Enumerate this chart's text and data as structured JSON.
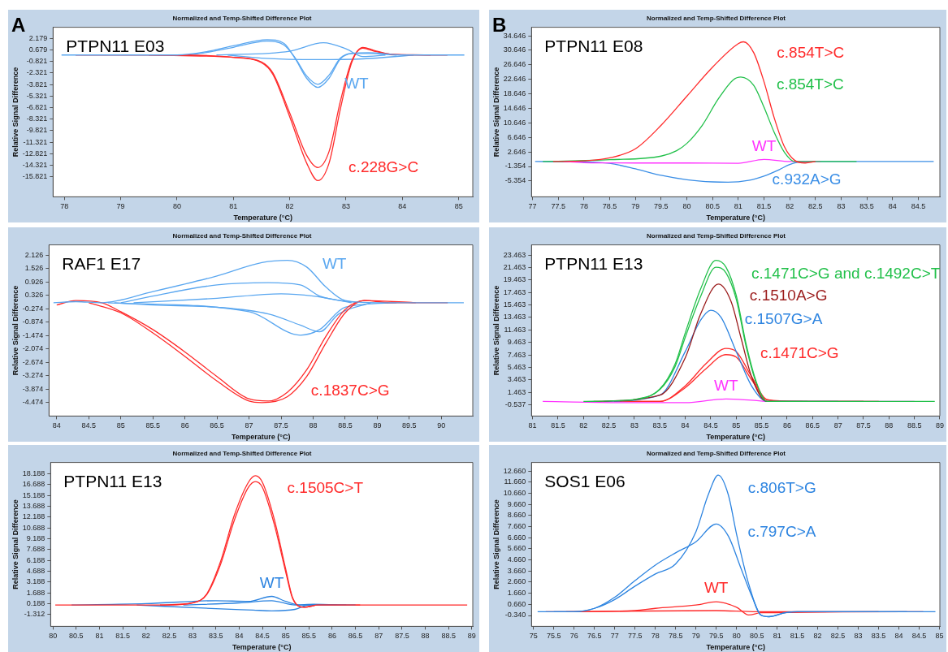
{
  "chart_data": [
    {
      "type": "line",
      "title": "Normalized and Temp-Shifted Difference Plot",
      "xlabel": "Temperature (°C)",
      "ylabel": "Relative Signal Difference",
      "marker": "none",
      "xlim": [
        77.8,
        85.25
      ],
      "xticks": [
        78,
        79,
        80,
        81,
        82,
        83,
        84,
        85
      ],
      "ylim": [
        -18.4,
        3.6
      ],
      "yticks": [
        2.179,
        0.679,
        -0.821,
        -2.321,
        -3.821,
        -5.321,
        -6.821,
        -8.321,
        -9.821,
        -11.321,
        -12.821,
        -14.321,
        -15.821
      ],
      "annotations": [
        "A",
        "PTPN11 E03",
        "WT",
        "c.228G>C"
      ],
      "series": [
        {
          "color": "#5aa7f0",
          "x": [
            77.95,
            80,
            80.5,
            81,
            81.6,
            81.9,
            82.1,
            82.3,
            82.5,
            82.7,
            82.9,
            83.1,
            83.4,
            84,
            85.1
          ],
          "values": [
            0,
            0,
            0.4,
            1.2,
            2,
            1.5,
            -0.5,
            -3,
            -4.2,
            -3,
            -0.5,
            0.2,
            0.3,
            0,
            0
          ]
        },
        {
          "color": "#ff2a2a",
          "x": [
            78.2,
            80,
            81,
            81.5,
            81.7,
            82,
            82.3,
            82.5,
            82.7,
            82.9,
            83.1,
            83.3,
            83.5,
            83.8,
            84.8
          ],
          "values": [
            0,
            0,
            -0.3,
            -1,
            -2.5,
            -8,
            -14,
            -16.3,
            -14,
            -7,
            -1,
            1,
            0.6,
            0.1,
            0
          ]
        },
        {
          "color": "#ff2a2a",
          "x": [
            79.5,
            81,
            81.5,
            81.7,
            82,
            82.3,
            82.5,
            82.7,
            82.9,
            83.1,
            83.3,
            83.5,
            83.8,
            84.5
          ],
          "values": [
            0,
            -0.3,
            -0.9,
            -2.3,
            -7.5,
            -13,
            -14.6,
            -12.5,
            -6,
            -0.8,
            0.9,
            0.5,
            0.1,
            0
          ]
        },
        {
          "color": "#5aa7f0",
          "x": [
            80.2,
            80.5,
            81,
            81.6,
            81.9,
            82.1,
            82.3,
            82.5,
            82.7,
            82.9,
            83.1,
            83.4,
            83.9
          ],
          "values": [
            0,
            0.3,
            1,
            1.8,
            1.3,
            -0.4,
            -2.7,
            -3.8,
            -2.6,
            -0.4,
            0.2,
            0.2,
            0
          ]
        },
        {
          "color": "#5aa7f0",
          "x": [
            80.7,
            82,
            82.6,
            83,
            83.3,
            83.7
          ],
          "values": [
            0,
            0.5,
            1.6,
            0.8,
            -0.2,
            0
          ]
        },
        {
          "color": "#5aa7f0",
          "x": [
            80.9,
            81.5,
            82.5,
            83.3,
            84.2
          ],
          "values": [
            0,
            -0.4,
            -0.6,
            -0.5,
            0
          ]
        }
      ]
    },
    {
      "type": "line",
      "title": "Normalized and Temp-Shifted Difference Plot",
      "xlabel": "Temperature (°C)",
      "ylabel": "Relative Signal Difference",
      "marker": "none",
      "xlim": [
        83.88,
        90.49
      ],
      "xticks": [
        84,
        84.5,
        85,
        85.5,
        86,
        86.5,
        87,
        87.5,
        88,
        88.5,
        89,
        89.5,
        90
      ],
      "ylim": [
        -5.07,
        2.59
      ],
      "yticks": [
        2.126,
        1.526,
        0.926,
        0.326,
        -0.274,
        -0.874,
        -1.474,
        -2.074,
        -2.674,
        -3.274,
        -3.874,
        -4.474
      ],
      "annotations": [
        "RAF1 E17",
        "WT",
        "c.1837C>G"
      ],
      "series": [
        {
          "color": "#5aa7f0",
          "x": [
            83.95,
            84.3,
            84.7,
            85.5,
            86.5,
            87.2,
            87.6,
            87.9,
            88.2,
            88.5,
            89,
            90.35
          ],
          "values": [
            0,
            0.05,
            0,
            0.5,
            1.2,
            1.8,
            1.9,
            1.6,
            0.7,
            0.1,
            0,
            0
          ]
        },
        {
          "color": "#ff2a2a",
          "x": [
            84,
            84.3,
            84.7,
            85,
            85.5,
            86,
            86.5,
            87,
            87.3,
            87.6,
            87.9,
            88.2,
            88.5,
            88.8,
            89.2,
            90.1
          ],
          "values": [
            -0.1,
            0.1,
            0,
            -0.4,
            -1.2,
            -2.2,
            -3.3,
            -4.3,
            -4.4,
            -4,
            -3,
            -1.5,
            -0.3,
            0.1,
            0,
            0
          ]
        },
        {
          "color": "#ff2a2a",
          "x": [
            84.5,
            85,
            85.5,
            86,
            86.5,
            87,
            87.2,
            87.6,
            87.9,
            88.2,
            88.5,
            88.8,
            89.6
          ],
          "values": [
            0,
            -0.45,
            -1.35,
            -2.4,
            -3.5,
            -4.4,
            -4.47,
            -4.2,
            -3.3,
            -1.8,
            -0.45,
            0.1,
            0
          ]
        },
        {
          "color": "#5aa7f0",
          "x": [
            84.8,
            87,
            87.8,
            88.1,
            88.5,
            89.3
          ],
          "values": [
            0,
            -0.4,
            -1.45,
            -1.2,
            -0.2,
            0
          ]
        },
        {
          "color": "#5aa7f0",
          "x": [
            85,
            85.5,
            86.5,
            87.3,
            87.8,
            88.1,
            88.7
          ],
          "values": [
            0,
            0.3,
            0.8,
            0.9,
            0.8,
            0.3,
            0
          ]
        },
        {
          "color": "#5aa7f0",
          "x": [
            84.9,
            85.5,
            86.5,
            87.3,
            87.8,
            88.1,
            88.4,
            88.9
          ],
          "values": [
            0,
            -0.1,
            -0.2,
            -0.5,
            -1,
            -1.3,
            -0.5,
            0
          ]
        },
        {
          "color": "#5aa7f0",
          "x": [
            85.2,
            86.5,
            87.5,
            88,
            88.6
          ],
          "values": [
            0,
            0.2,
            0.4,
            0.3,
            0
          ]
        }
      ]
    },
    {
      "type": "line",
      "title": "Normalized and Temp-Shifted Difference Plot",
      "xlabel": "Temperature (°C)",
      "ylabel": "Relative Signal Difference",
      "marker": "none",
      "xlim": [
        79.95,
        89.02
      ],
      "xticks": [
        80,
        80.5,
        81,
        81.5,
        82,
        82.5,
        83,
        83.5,
        84,
        84.5,
        85,
        85.5,
        86,
        86.5,
        87,
        87.5,
        88,
        88.5,
        89
      ],
      "ylim": [
        -2.95,
        19.74
      ],
      "yticks": [
        18.188,
        16.688,
        15.188,
        13.688,
        12.188,
        10.688,
        9.188,
        7.688,
        6.188,
        4.688,
        3.188,
        1.688,
        0.188,
        -1.312
      ],
      "annotations": [
        "PTPN11 E13",
        "c.1505C>T",
        "WT"
      ],
      "series": [
        {
          "color": "#ff2a2a",
          "x": [
            80.05,
            82.5,
            83,
            83.3,
            83.6,
            83.9,
            84.2,
            84.35,
            84.5,
            84.75,
            85,
            85.15,
            85.4,
            85.7,
            88.9
          ],
          "values": [
            0,
            0,
            0.3,
            1.5,
            6,
            12.5,
            17,
            17.9,
            17,
            12,
            5,
            1,
            -0.3,
            0,
            0
          ]
        },
        {
          "color": "#2d84e0",
          "x": [
            80.4,
            82,
            83.5,
            84.2,
            84.7,
            85,
            85.3,
            86.5
          ],
          "values": [
            0,
            0.2,
            0.6,
            0.5,
            1.2,
            0.5,
            0,
            0
          ]
        },
        {
          "color": "#ff2a2a",
          "x": [
            82.3,
            83,
            83.3,
            83.6,
            83.9,
            84.2,
            84.35,
            84.5,
            84.75,
            85,
            85.15,
            85.4,
            85.7,
            86.6
          ],
          "values": [
            0,
            0.3,
            1.4,
            5.6,
            11.8,
            16.3,
            17.1,
            16.3,
            11.3,
            4.6,
            0.9,
            -0.3,
            0,
            0
          ]
        },
        {
          "color": "#2d84e0",
          "x": [
            81.8,
            83.5,
            84.3,
            84.7,
            85.2,
            85.5,
            86.1
          ],
          "values": [
            0,
            -0.5,
            -0.7,
            -0.8,
            -0.6,
            0,
            0
          ]
        },
        {
          "color": "#2d84e0",
          "x": [
            82.8,
            84,
            84.7,
            85.2,
            85.6,
            86.3
          ],
          "values": [
            0,
            0.3,
            0.6,
            0,
            0.1,
            0
          ]
        }
      ]
    },
    {
      "type": "line",
      "title": "Normalized and Temp-Shifted Difference Plot",
      "xlabel": "Temperature (°C)",
      "ylabel": "Relative Signal Difference",
      "marker": "none",
      "xlim": [
        76.98,
        84.92
      ],
      "xticks": [
        77,
        77.5,
        78,
        78.5,
        79,
        79.5,
        80,
        80.5,
        81,
        81.5,
        82,
        82.5,
        83,
        83.5,
        84,
        84.5
      ],
      "ylim": [
        -9.72,
        37
      ],
      "yticks": [
        34.646,
        30.646,
        26.646,
        22.646,
        18.646,
        14.646,
        10.646,
        6.646,
        2.646,
        -1.354,
        -5.354
      ],
      "annotations": [
        "B",
        "PTPN11 E08",
        "c.854T>C",
        "c.854T>C",
        "WT",
        "c.932A>G"
      ],
      "series": [
        {
          "color": "#ff2a2a",
          "x": [
            77.4,
            78,
            78.5,
            79,
            79.5,
            80,
            80.5,
            81,
            81.1,
            81.3,
            81.5,
            81.7,
            81.9,
            82.1,
            82.3,
            82.5
          ],
          "values": [
            0,
            0.2,
            1,
            3.5,
            10,
            18,
            26,
            32.5,
            33,
            30,
            22,
            12,
            4,
            0.3,
            -0.4,
            0
          ]
        },
        {
          "color": "#22c04a",
          "x": [
            77.2,
            78.5,
            79.5,
            79.8,
            80,
            80.3,
            80.6,
            80.9,
            81.05,
            81.3,
            81.5,
            81.7,
            81.9,
            82.1,
            83.3
          ],
          "values": [
            0,
            0.5,
            1.5,
            3,
            5,
            10,
            17,
            22.5,
            23.3,
            21,
            15,
            8,
            2.5,
            0,
            0
          ]
        },
        {
          "color": "#ff33ff",
          "x": [
            77.6,
            78,
            79,
            80,
            81,
            81.5,
            82,
            82.6
          ],
          "values": [
            0,
            -0.3,
            -0.4,
            -0.4,
            -0.5,
            0.6,
            0,
            0
          ]
        },
        {
          "color": "#3a8ee6",
          "x": [
            77.05,
            78,
            78.5,
            79,
            79.5,
            80,
            80.5,
            80.8,
            81.2,
            81.5,
            81.8,
            82,
            82.3,
            84.8
          ],
          "values": [
            0,
            -0.1,
            -0.5,
            -2,
            -3.8,
            -5,
            -5.6,
            -5.7,
            -5.2,
            -4,
            -2.2,
            -0.8,
            0,
            0
          ]
        }
      ]
    },
    {
      "type": "line",
      "title": "Normalized and Temp-Shifted Difference Plot",
      "xlabel": "Temperature (°C)",
      "ylabel": "Relative Signal Difference",
      "marker": "none",
      "xlim": [
        80.98,
        89
      ],
      "xticks": [
        81,
        81.5,
        82,
        82.5,
        83,
        83.5,
        84,
        84.5,
        85,
        85.5,
        86,
        86.5,
        87,
        87.5,
        88,
        88.5,
        89
      ],
      "ylim": [
        -2.34,
        25.08
      ],
      "yticks": [
        23.463,
        21.463,
        19.463,
        17.463,
        15.463,
        13.463,
        11.463,
        9.463,
        7.463,
        5.463,
        3.463,
        1.463,
        -0.537
      ],
      "annotations": [
        "PTPN11 E13",
        "c.1471C>G and c.1492C>T",
        "c.1510A>G",
        "c.1507G>A",
        "c.1471C>G",
        "WT"
      ],
      "series": [
        {
          "color": "#22c04a",
          "x": [
            82,
            83,
            83.5,
            83.8,
            84,
            84.3,
            84.6,
            84.8,
            85,
            85.2,
            85.4,
            85.6,
            86,
            88.9
          ],
          "values": [
            0,
            0.3,
            2,
            6,
            11,
            18,
            22.6,
            21.5,
            17,
            9,
            3,
            0,
            0,
            0
          ]
        },
        {
          "color": "#9b1c1c",
          "x": [
            82.2,
            83.5,
            84,
            84.3,
            84.65,
            84.9,
            85.1,
            85.3,
            85.6,
            87.5
          ],
          "values": [
            0,
            1,
            7,
            14,
            18.8,
            16,
            10,
            4,
            0,
            0
          ]
        },
        {
          "color": "#2d84e0",
          "x": [
            82.4,
            83.5,
            84,
            84.3,
            84.5,
            84.7,
            85,
            85.3,
            85.6,
            87
          ],
          "values": [
            0,
            1,
            8,
            13,
            14.6,
            13.5,
            8,
            2.5,
            0,
            0
          ]
        },
        {
          "color": "#ff2a2a",
          "x": [
            82.6,
            83.5,
            84,
            84.4,
            84.8,
            85,
            85.3,
            85.6,
            86,
            87.8
          ],
          "values": [
            0,
            0,
            2.5,
            6,
            8.5,
            8,
            4,
            0.3,
            0,
            0
          ]
        },
        {
          "color": "#ff33ff",
          "x": [
            81.2,
            83,
            84,
            84.8,
            85.3,
            85.7,
            88.5
          ],
          "values": [
            0,
            -0.2,
            -0.2,
            0.4,
            0.2,
            0,
            0
          ]
        },
        {
          "color": "#22c04a",
          "x": [
            82.8,
            83,
            83.5,
            83.8,
            84,
            84.3,
            84.6,
            84.8,
            85,
            85.2,
            85.4,
            85.6,
            86.4
          ],
          "values": [
            0,
            0.3,
            1.9,
            5.6,
            10.3,
            16.8,
            21.5,
            20.6,
            16.4,
            8.6,
            2.8,
            0,
            0
          ]
        },
        {
          "color": "#ff2a2a",
          "x": [
            83,
            83.5,
            84,
            84.4,
            84.8,
            85,
            85.3,
            85.6,
            86.3
          ],
          "values": [
            0,
            0,
            2.2,
            5.2,
            7.5,
            7.1,
            3.5,
            0.3,
            0
          ]
        }
      ]
    },
    {
      "type": "line",
      "title": "Normalized and Temp-Shifted Difference Plot",
      "xlabel": "Temperature (°C)",
      "ylabel": "Relative Signal Difference",
      "marker": "none",
      "xlim": [
        74.95,
        85.01
      ],
      "xticks": [
        75,
        75.5,
        76,
        76.5,
        77,
        77.5,
        78,
        78.5,
        79,
        79.5,
        80,
        80.5,
        81,
        81.5,
        82,
        82.5,
        83,
        83.5,
        84,
        84.5,
        85
      ],
      "ylim": [
        -1.32,
        13.44
      ],
      "yticks": [
        {
          "value": 12.66,
          "label": "12.660"
        },
        {
          "value": 11.66,
          "label": "11.660"
        },
        {
          "value": 10.66,
          "label": "10.660"
        },
        {
          "value": 9.66,
          "label": "9.660"
        },
        {
          "value": 8.66,
          "label": "8.660"
        },
        {
          "value": 7.66,
          "label": "7.660"
        },
        {
          "value": 6.66,
          "label": "6.660"
        },
        {
          "value": 5.66,
          "label": "5.660"
        },
        {
          "value": 4.66,
          "label": "4.660"
        },
        {
          "value": 3.66,
          "label": "3.660"
        },
        {
          "value": 2.66,
          "label": "2.660"
        },
        {
          "value": 1.66,
          "label": "1.660"
        },
        {
          "value": 0.66,
          "label": "0.660"
        },
        {
          "value": -0.34,
          "label": "-0.340"
        }
      ],
      "annotations": [
        "SOS1 E06",
        "c.806T>G",
        "c.797C>A",
        "WT"
      ],
      "series": [
        {
          "color": "#2d84e0",
          "x": [
            75.1,
            76,
            76.5,
            77,
            77.5,
            78,
            78.5,
            79,
            79.3,
            79.55,
            79.8,
            80,
            80.3,
            80.6,
            80.8,
            81.2,
            81.5,
            84.9
          ],
          "values": [
            0,
            0,
            0.3,
            1.1,
            2.3,
            3.4,
            4.3,
            7.2,
            10.5,
            12.3,
            10.5,
            7,
            2.5,
            -0.3,
            -0.45,
            -0.1,
            0,
            0
          ]
        },
        {
          "color": "#2d84e0",
          "x": [
            75.5,
            76,
            76.5,
            77,
            77.5,
            78,
            78.5,
            79,
            79.5,
            79.8,
            80.1,
            80.4,
            80.6,
            80.8,
            81.2,
            81.5,
            84.2
          ],
          "values": [
            0,
            0,
            0.3,
            1.3,
            2.8,
            4.2,
            5.3,
            6.3,
            7.9,
            6.8,
            4,
            1.2,
            -0.3,
            -0.45,
            -0.1,
            0,
            0
          ]
        },
        {
          "color": "#ff2a2a",
          "x": [
            75.3,
            76,
            77.5,
            78,
            79,
            79.5,
            80,
            80.3,
            80.6,
            84.6
          ],
          "values": [
            0,
            0,
            0.1,
            0.3,
            0.6,
            0.9,
            0.4,
            -0.3,
            -0.1,
            0
          ]
        },
        {
          "color": "#ff2a2a",
          "x": [
            75.8,
            79.5,
            80.5,
            83.5
          ],
          "values": [
            0,
            0.1,
            0,
            0
          ]
        }
      ]
    }
  ]
}
